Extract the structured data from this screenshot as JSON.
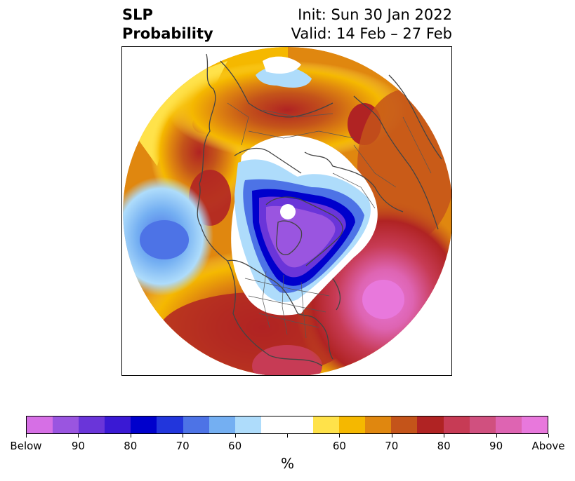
{
  "title": {
    "line1_left": "SLP",
    "line2_left": "Probability",
    "line1_right": "Init: Sun 30 Jan 2022",
    "line2_right": "Valid: 14 Feb – 27 Feb"
  },
  "colorbar": {
    "unit_label": "%",
    "tick_labels": [
      "Below",
      "90",
      "80",
      "70",
      "60",
      "",
      "60",
      "70",
      "80",
      "90",
      "Above"
    ],
    "colors": [
      "#d66fe5",
      "#9a55e0",
      "#6a35d9",
      "#3a19d4",
      "#0000cc",
      "#2236dc",
      "#4d73e6",
      "#74aff2",
      "#aedcfb",
      "#ffffff",
      "#ffe24a",
      "#f5b800",
      "#e0870f",
      "#c4541a",
      "#b02323",
      "#c73b55",
      "#d0507f",
      "#de64b2",
      "#e878dc"
    ]
  },
  "map": {
    "projection": "north-polar-stereographic",
    "field": "sea level pressure probability",
    "features": [
      "coastlines",
      "country-borders",
      "state-province-borders"
    ]
  }
}
